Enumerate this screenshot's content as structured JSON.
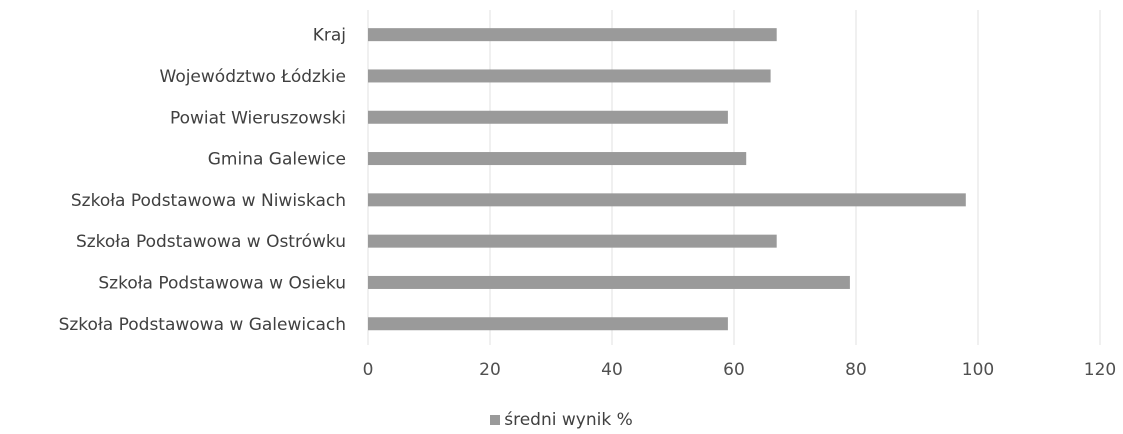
{
  "chart_data": {
    "type": "bar",
    "orientation": "horizontal",
    "title": "",
    "xlabel": "",
    "ylabel": "",
    "categories": [
      "Kraj",
      "Województwo Łódzkie",
      "Powiat Wieruszowski",
      "Gmina Galewice",
      "Szkoła Podstawowa w Niwiskach",
      "Szkoła Podstawowa w Ostrówku",
      "Szkoła Podstawowa w Osieku",
      "Szkoła Podstawowa w Galewicach"
    ],
    "series": [
      {
        "name": "średni wynik %",
        "values": [
          67,
          66,
          59,
          62,
          98,
          67,
          79,
          59
        ],
        "color": "#9a9a9a"
      }
    ],
    "xlim": [
      0,
      120
    ],
    "x_ticks": [
      "0",
      "20",
      "40",
      "60",
      "80",
      "100",
      "120"
    ],
    "grid": "vertical",
    "legend_position": "bottom"
  },
  "legend": {
    "label": "średni wynik %"
  }
}
